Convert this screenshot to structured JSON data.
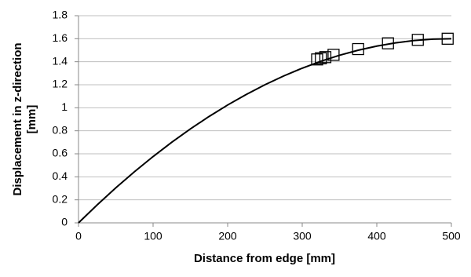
{
  "chart_data": {
    "type": "line",
    "xlabel": "Distance from edge [mm]",
    "ylabel": [
      "Displacement in z-direction",
      "[mm]"
    ],
    "xlim": [
      0,
      500
    ],
    "xticks": [
      0,
      100,
      200,
      300,
      400,
      500
    ],
    "ylim": [
      0,
      1.8
    ],
    "yticks": [
      0,
      0.2,
      0.4,
      0.6,
      0.8,
      1,
      1.2,
      1.4,
      1.6,
      1.8
    ],
    "grid": true,
    "series": [
      {
        "type": "line",
        "color": "#000000",
        "x": [
          0,
          25,
          50,
          75,
          100,
          125,
          150,
          175,
          200,
          225,
          250,
          275,
          300,
          325,
          350,
          375,
          400,
          425,
          450,
          475,
          500
        ],
        "values": [
          0,
          0.156,
          0.304,
          0.444,
          0.576,
          0.7,
          0.816,
          0.924,
          1.024,
          1.116,
          1.2,
          1.276,
          1.344,
          1.404,
          1.456,
          1.5,
          1.536,
          1.564,
          1.584,
          1.596,
          1.6
        ]
      },
      {
        "type": "scatter",
        "marker": "square",
        "color": "#000000",
        "x": [
          320,
          325,
          331,
          342,
          375,
          415,
          455,
          495
        ],
        "values": [
          1.42,
          1.43,
          1.44,
          1.46,
          1.51,
          1.56,
          1.59,
          1.6
        ]
      }
    ]
  }
}
